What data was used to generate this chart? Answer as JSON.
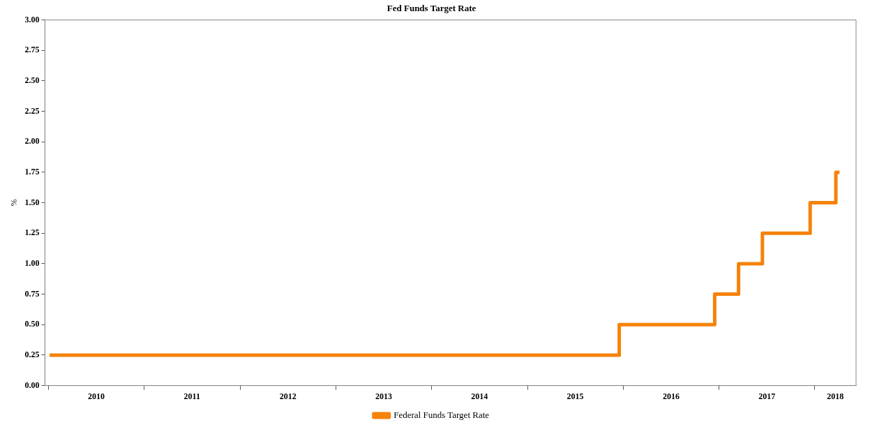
{
  "chart_data": {
    "type": "step",
    "title": "Fed Funds Target Rate",
    "ylabel": "%",
    "series": [
      {
        "name": "Federal Funds Target Rate",
        "color": "#f5820a",
        "x": [
          "2010-01-05",
          "2015-12-17",
          "2016-12-15",
          "2017-03-16",
          "2017-06-15",
          "2017-12-14",
          "2018-03-22",
          "2018-04-05"
        ],
        "values": [
          0.25,
          0.5,
          0.75,
          1.0,
          1.25,
          1.5,
          1.75,
          1.75
        ]
      }
    ],
    "xlim": [
      "2009-12-18",
      "2018-06-07"
    ],
    "xticks": [
      {
        "value": "2010-01-01",
        "label": null
      },
      {
        "value": "2010-07-02",
        "label": "2010"
      },
      {
        "value": "2011-01-01",
        "label": null
      },
      {
        "value": "2011-07-02",
        "label": "2011"
      },
      {
        "value": "2012-01-01",
        "label": null
      },
      {
        "value": "2012-07-02",
        "label": "2012"
      },
      {
        "value": "2013-01-01",
        "label": null
      },
      {
        "value": "2013-07-02",
        "label": "2013"
      },
      {
        "value": "2014-01-01",
        "label": null
      },
      {
        "value": "2014-07-02",
        "label": "2014"
      },
      {
        "value": "2015-01-01",
        "label": null
      },
      {
        "value": "2015-07-02",
        "label": "2015"
      },
      {
        "value": "2016-01-01",
        "label": null
      },
      {
        "value": "2016-07-02",
        "label": "2016"
      },
      {
        "value": "2017-01-01",
        "label": null
      },
      {
        "value": "2017-07-02",
        "label": "2017"
      },
      {
        "value": "2018-01-01",
        "label": null
      },
      {
        "value": "2018-03-20",
        "label": "2018"
      }
    ],
    "ylim": [
      0,
      3
    ],
    "yticks": [
      {
        "value": 0,
        "label": "0.00"
      },
      {
        "value": 0.25,
        "label": "0.25"
      },
      {
        "value": 0.5,
        "label": "0.50"
      },
      {
        "value": 0.75,
        "label": "0.75"
      },
      {
        "value": 1,
        "label": "1.00"
      },
      {
        "value": 1.25,
        "label": "1.25"
      },
      {
        "value": 1.5,
        "label": "1.50"
      },
      {
        "value": 1.75,
        "label": "1.75"
      },
      {
        "value": 2,
        "label": "2.00"
      },
      {
        "value": 2.25,
        "label": "2.25"
      },
      {
        "value": 2.5,
        "label": "2.50"
      },
      {
        "value": 2.75,
        "label": "2.75"
      },
      {
        "value": 3,
        "label": "3.00"
      }
    ],
    "grid": false,
    "legend": "bottom",
    "line_style": "solid",
    "marker": "none"
  }
}
